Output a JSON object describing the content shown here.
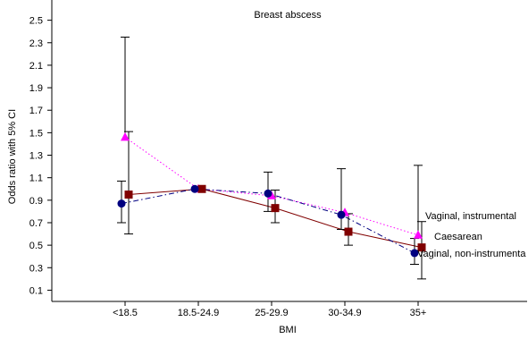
{
  "chart_data": {
    "type": "line",
    "title": "Breast abscess",
    "xlabel": "BMI",
    "ylabel": "Odds ratio with 5% CI",
    "categories": [
      "<18.5",
      "18.5-24.9",
      "25-29.9",
      "30-34.9",
      "35+"
    ],
    "yticks": [
      0.1,
      0.3,
      0.5,
      0.7,
      0.9,
      1.1,
      1.3,
      1.5,
      1.7,
      1.9,
      2.1,
      2.3,
      2.5
    ],
    "ylim": [
      0,
      2.68
    ],
    "grid": false,
    "series": [
      {
        "name": "Vaginal, instrumental",
        "color": "#ff00ff",
        "marker": "triangle",
        "line_style": "dotted",
        "values": [
          1.46,
          1.0,
          0.94,
          0.79,
          0.59
        ],
        "ci_low": [
          null,
          null,
          null,
          null,
          null
        ],
        "ci_high": [
          2.35,
          null,
          null,
          null,
          1.21
        ]
      },
      {
        "name": "Caesarean",
        "color": "#800000",
        "marker": "square",
        "line_style": "solid",
        "values": [
          0.95,
          1.0,
          0.83,
          0.62,
          0.48
        ],
        "ci_low": [
          0.6,
          null,
          0.7,
          0.5,
          0.2
        ],
        "ci_high": [
          1.51,
          null,
          0.99,
          0.78,
          0.71
        ]
      },
      {
        "name": "Vaginal, non-instrumenta",
        "color": "#000080",
        "marker": "circle",
        "line_style": "dashdot",
        "values": [
          0.87,
          1.0,
          0.96,
          0.77,
          0.43
        ],
        "ci_low": [
          0.7,
          null,
          0.8,
          0.64,
          0.33
        ],
        "ci_high": [
          1.07,
          null,
          1.15,
          1.18,
          0.56
        ]
      }
    ]
  }
}
